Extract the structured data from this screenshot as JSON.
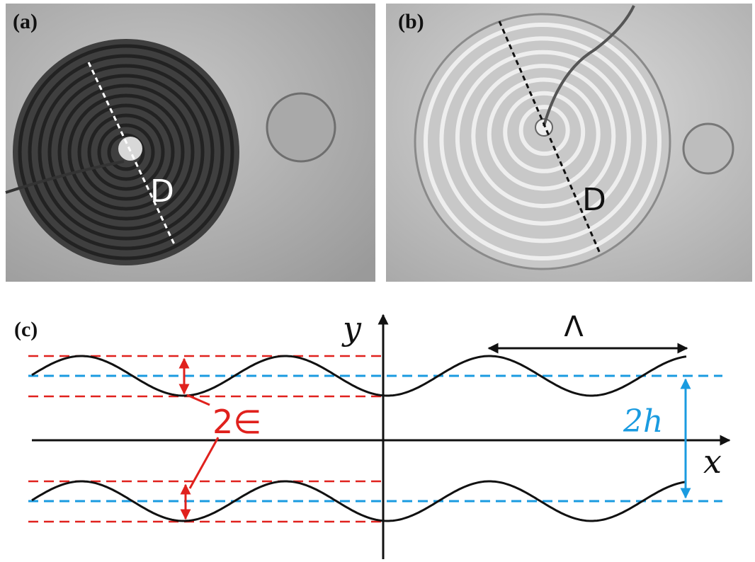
{
  "panels": [
    {
      "label": "(a)",
      "dimension_label": "D"
    },
    {
      "label": "(b)",
      "dimension_label": "D"
    },
    {
      "label": "(c)",
      "axis_labels": {
        "y": "y",
        "x": "x"
      },
      "wavelength_label": "Λ",
      "amplitude_label": "2∈",
      "height_label": "2h"
    }
  ]
}
